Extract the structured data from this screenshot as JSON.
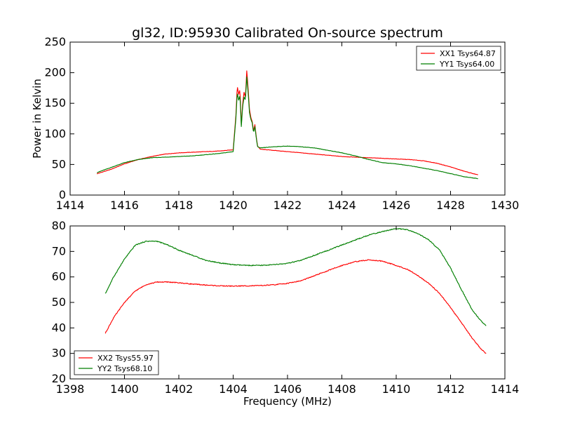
{
  "title": "gl32, ID:95930 Calibrated On-source spectrum",
  "colors": {
    "red": "#ff0000",
    "green": "#007f00",
    "frame": "#000000"
  },
  "chart_data": [
    {
      "type": "line",
      "title": "gl32, ID:95930 Calibrated On-source spectrum",
      "xlabel": "",
      "ylabel": "Power in Kelvin",
      "xlim": [
        1414,
        1430
      ],
      "ylim": [
        0,
        250
      ],
      "xticks": [
        1414,
        1416,
        1418,
        1420,
        1422,
        1424,
        1426,
        1428,
        1430
      ],
      "yticks": [
        0,
        50,
        100,
        150,
        200,
        250
      ],
      "legend_position": "top-right",
      "series": [
        {
          "name": "XX1 Tsys64.87",
          "color": "#ff0000",
          "x": [
            1415,
            1415.5,
            1416,
            1416.5,
            1417,
            1417.5,
            1418,
            1418.5,
            1419,
            1419.5,
            1420,
            1420.1,
            1420.15,
            1420.2,
            1420.25,
            1420.3,
            1420.35,
            1420.4,
            1420.45,
            1420.5,
            1420.55,
            1420.6,
            1420.65,
            1420.7,
            1420.75,
            1420.8,
            1420.85,
            1420.9,
            1421,
            1421.5,
            1422,
            1422.5,
            1423,
            1423.5,
            1424,
            1424.5,
            1425,
            1425.5,
            1426,
            1426.5,
            1427,
            1427.5,
            1428,
            1428.5,
            1429
          ],
          "y": [
            35,
            42,
            51,
            58,
            63,
            67,
            69,
            70,
            71,
            72,
            74,
            130,
            178,
            165,
            172,
            115,
            150,
            168,
            160,
            203,
            175,
            140,
            127,
            120,
            105,
            115,
            95,
            80,
            75,
            73,
            71,
            69,
            67,
            65,
            63,
            62,
            61,
            60,
            59,
            58,
            56,
            52,
            46,
            39,
            33
          ]
        },
        {
          "name": "YY1 Tsys64.00",
          "color": "#007f00",
          "x": [
            1415,
            1415.5,
            1416,
            1416.5,
            1417,
            1417.5,
            1418,
            1418.5,
            1419,
            1419.5,
            1420,
            1420.1,
            1420.15,
            1420.2,
            1420.25,
            1420.3,
            1420.35,
            1420.4,
            1420.45,
            1420.5,
            1420.55,
            1420.6,
            1420.65,
            1420.7,
            1420.75,
            1420.8,
            1420.85,
            1420.9,
            1421,
            1421.5,
            1422,
            1422.5,
            1423,
            1423.5,
            1424,
            1424.5,
            1425,
            1425.5,
            1426,
            1426.5,
            1427,
            1427.5,
            1428,
            1428.5,
            1429
          ],
          "y": [
            37,
            45,
            53,
            58,
            61,
            62,
            63,
            64,
            66,
            68,
            71,
            125,
            168,
            155,
            163,
            112,
            145,
            160,
            155,
            193,
            168,
            135,
            124,
            118,
            102,
            112,
            93,
            79,
            77,
            79,
            80,
            79,
            77,
            73,
            69,
            64,
            58,
            53,
            51,
            48,
            44,
            40,
            35,
            30,
            27
          ]
        }
      ]
    },
    {
      "type": "line",
      "title": "",
      "xlabel": "Frequency (MHz)",
      "ylabel": "",
      "xlim": [
        1398,
        1414
      ],
      "ylim": [
        20,
        80
      ],
      "xticks": [
        1398,
        1400,
        1402,
        1404,
        1406,
        1408,
        1410,
        1412,
        1414
      ],
      "yticks": [
        20,
        30,
        40,
        50,
        60,
        70,
        80
      ],
      "legend_position": "bottom-left",
      "series": [
        {
          "name": "XX2 Tsys55.97",
          "color": "#ff0000",
          "x": [
            1399.3,
            1399.6,
            1400,
            1400.4,
            1400.8,
            1401.2,
            1401.6,
            1402,
            1402.5,
            1403,
            1403.5,
            1404,
            1404.5,
            1405,
            1405.5,
            1406,
            1406.5,
            1407,
            1407.5,
            1408,
            1408.5,
            1409,
            1409.5,
            1410,
            1410.4,
            1410.8,
            1411.2,
            1411.6,
            1412,
            1412.4,
            1412.8,
            1413.1,
            1413.3
          ],
          "y": [
            38,
            44,
            50,
            54.5,
            57,
            58,
            58,
            57.7,
            57.2,
            56.8,
            56.5,
            56.4,
            56.5,
            56.6,
            56.9,
            57.5,
            58.5,
            60.5,
            62.5,
            64.5,
            66,
            66.7,
            66.2,
            64.5,
            63,
            60.5,
            57.5,
            53.5,
            48,
            42,
            36,
            32,
            30
          ]
        },
        {
          "name": "YY2 Tsys68.10",
          "color": "#007f00",
          "x": [
            1399.3,
            1399.6,
            1400,
            1400.4,
            1400.8,
            1401.2,
            1401.6,
            1402,
            1402.5,
            1403,
            1403.5,
            1404,
            1404.5,
            1405,
            1405.5,
            1406,
            1406.5,
            1407,
            1407.5,
            1408,
            1408.5,
            1409,
            1409.5,
            1410,
            1410.4,
            1410.8,
            1411.2,
            1411.6,
            1412,
            1412.4,
            1412.8,
            1413.1,
            1413.3
          ],
          "y": [
            53.5,
            60,
            67,
            72.5,
            74,
            74,
            72.5,
            70.5,
            68.5,
            66.5,
            65.5,
            64.8,
            64.5,
            64.5,
            64.8,
            65.3,
            66.5,
            68.5,
            70.5,
            72.5,
            74.5,
            76.5,
            77.8,
            79,
            78.5,
            77,
            74.5,
            70.5,
            63.5,
            55,
            47,
            43,
            41
          ]
        }
      ]
    }
  ]
}
